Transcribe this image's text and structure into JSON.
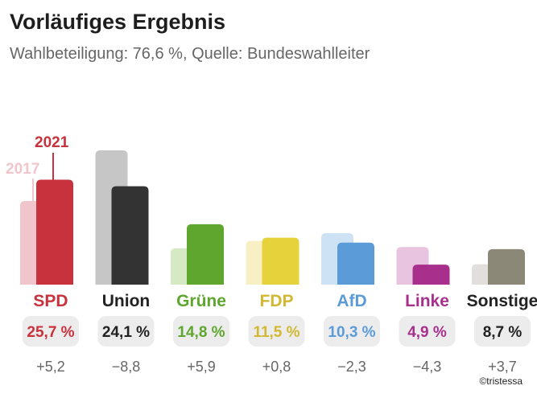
{
  "title": "Vorläufiges Ergebnis",
  "subtitle": "Wahlbeteiligung: 76,6 %, Quelle: Bundeswahlleiter",
  "credit": "©tristessa",
  "chart_data": {
    "type": "bar",
    "title": "Vorläufiges Ergebnis",
    "xlabel": "",
    "ylabel": "",
    "ylim": [
      0,
      32
    ],
    "grid": false,
    "categories": [
      "SPD",
      "Union",
      "Grüne",
      "FDP",
      "AfD",
      "Linke",
      "Sonstige"
    ],
    "series": [
      {
        "name": "2017",
        "values": [
          20.5,
          32.9,
          8.9,
          10.7,
          12.6,
          9.2,
          5.0
        ]
      },
      {
        "name": "2021",
        "values": [
          25.7,
          24.1,
          14.8,
          11.5,
          10.3,
          4.9,
          8.7
        ]
      }
    ],
    "series_labels": [
      "2017",
      "2021"
    ],
    "value_labels": [
      "25,7 %",
      "24,1 %",
      "14,8 %",
      "11,5 %",
      "10,3 %",
      "4,9 %",
      "8,7 %"
    ],
    "change_labels": [
      "+5,2",
      "−8,8",
      "+5,9",
      "+0,8",
      "−2,3",
      "−4,3",
      "+3,7"
    ],
    "colors_2021": [
      "#c8323c",
      "#333333",
      "#5ea62e",
      "#e6d23a",
      "#5b9bd8",
      "#a8308c",
      "#8c8878"
    ],
    "colors_2017": [
      "#f0c6cc",
      "#c6c6c6",
      "#d5e9c5",
      "#f8f0c4",
      "#cde2f5",
      "#e8c4e0",
      "#e0dfdb"
    ],
    "label_colors": [
      "#c8323c",
      "#222222",
      "#5ea62e",
      "#d2b832",
      "#5b9bd8",
      "#a8308c",
      "#222222"
    ],
    "legend_colors": {
      "2017": "#f0c6cc",
      "2021": "#c8323c"
    }
  }
}
